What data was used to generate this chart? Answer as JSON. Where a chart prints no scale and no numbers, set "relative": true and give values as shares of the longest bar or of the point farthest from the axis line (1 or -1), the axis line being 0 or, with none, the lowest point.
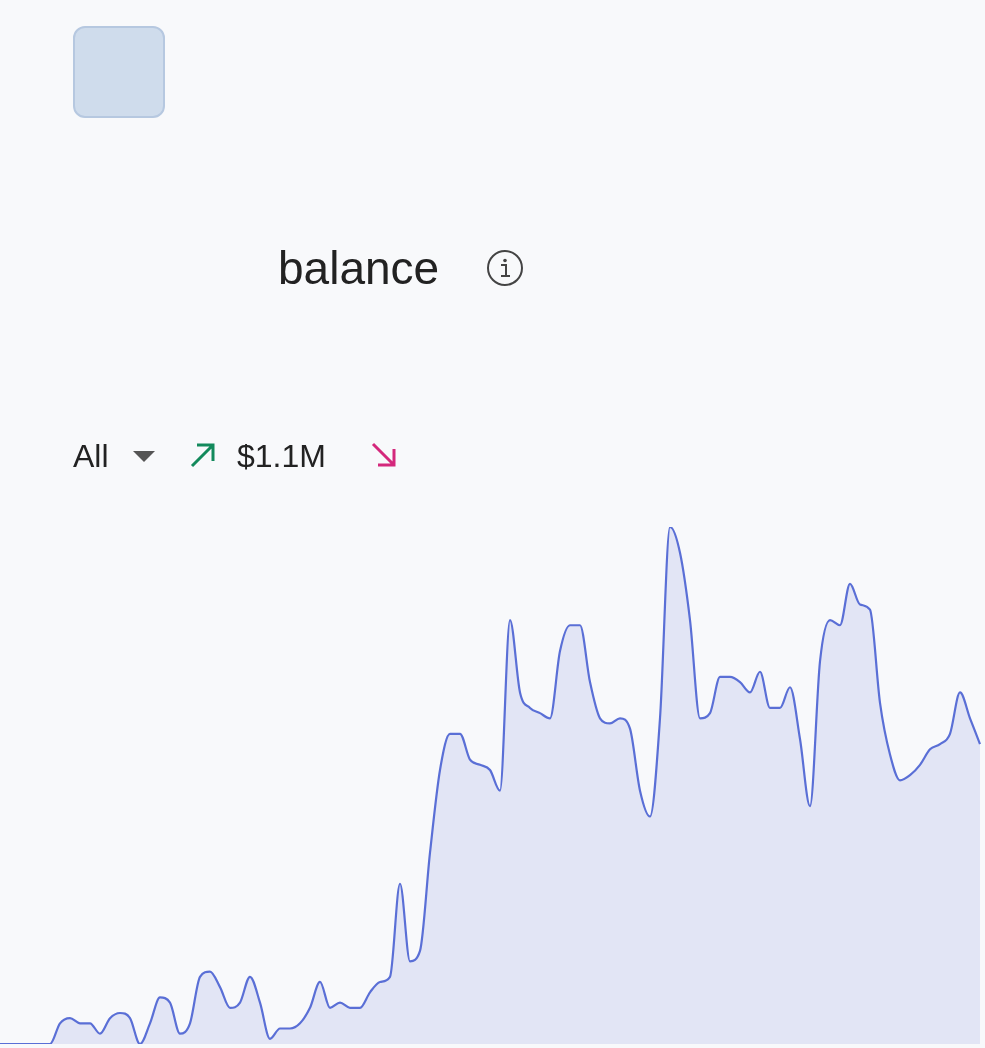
{
  "chart_data": {
    "type": "area",
    "title": "balance",
    "relative": true,
    "annotations": [
      "All",
      "$1.1M"
    ],
    "categories": [
      null,
      null,
      null,
      null,
      null,
      null,
      null,
      null,
      null,
      null,
      null,
      null,
      null,
      null,
      null,
      null,
      null,
      null,
      null,
      null,
      null,
      null,
      null,
      null,
      null,
      null,
      null,
      null,
      null,
      null,
      null,
      null,
      null,
      null,
      null,
      null,
      null,
      null,
      null,
      null,
      null,
      null,
      null,
      null,
      null,
      null,
      null,
      null,
      null,
      null,
      null,
      null,
      null,
      null,
      null,
      null,
      null,
      null,
      null,
      null,
      null,
      null,
      null,
      null,
      null,
      null,
      null,
      null,
      null,
      null,
      null,
      null,
      null,
      null,
      null,
      null,
      null,
      null,
      null,
      null,
      null,
      null,
      null,
      null,
      null,
      null,
      null,
      null,
      null,
      null,
      null,
      null,
      null,
      null,
      null,
      null,
      null,
      null,
      null
    ],
    "series": [
      {
        "color": "#5a6fd6",
        "values": [
          0,
          0,
          0,
          0,
          0,
          0,
          0.04,
          0.05,
          0.04,
          0.04,
          0.02,
          0.05,
          0.06,
          0.05,
          0,
          0.04,
          0.09,
          0.08,
          0.02,
          0.04,
          0.13,
          0.14,
          0.11,
          0.07,
          0.08,
          0.13,
          0.08,
          0.01,
          0.03,
          0.03,
          0.04,
          0.07,
          0.12,
          0.07,
          0.08,
          0.07,
          0.07,
          0.1,
          0.12,
          0.13,
          0.31,
          0.16,
          0.18,
          0.37,
          0.53,
          0.6,
          0.6,
          0.55,
          0.54,
          0.53,
          0.49,
          0.82,
          0.68,
          0.65,
          0.64,
          0.63,
          0.76,
          0.81,
          0.81,
          0.7,
          0.63,
          0.62,
          0.63,
          0.61,
          0.49,
          0.44,
          0.63,
          1,
          0.95,
          0.82,
          0.63,
          0.64,
          0.71,
          0.71,
          0.7,
          0.68,
          0.72,
          0.65,
          0.65,
          0.69,
          0.59,
          0.46,
          0.74,
          0.82,
          0.81,
          0.89,
          0.85,
          0.84,
          0.66,
          0.56,
          0.51,
          0.52,
          0.54,
          0.57,
          0.58,
          0.6,
          0.68,
          0.63,
          0.58
        ]
      }
    ]
  }
}
